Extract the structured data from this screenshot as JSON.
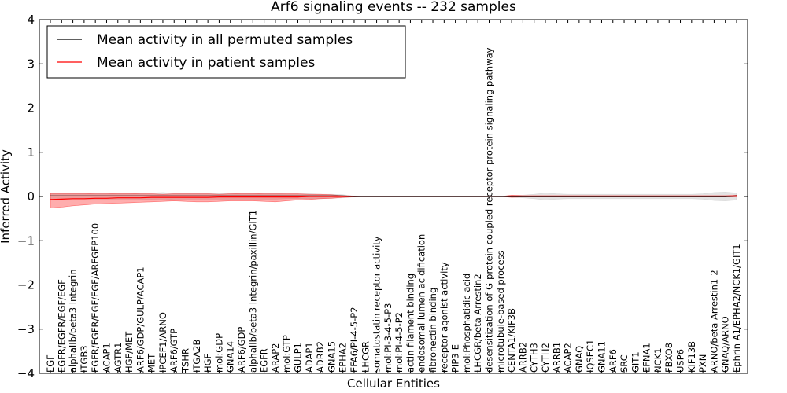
{
  "chart_data": {
    "type": "line",
    "title": "Arf6 signaling events -- 232 samples",
    "xlabel": "Cellular Entities",
    "ylabel": "Inferred Activity",
    "ylim": [
      -4,
      4
    ],
    "yticks": [
      "4",
      "3",
      "2",
      "1",
      "0",
      "−1",
      "−2",
      "−3",
      "−4"
    ],
    "ytick_values": [
      4,
      3,
      2,
      1,
      0,
      -1,
      -2,
      -3,
      -4
    ],
    "legend_location": "upper-left",
    "categories": [
      "EGF",
      "EGFR/EGFR/EGF/EGF",
      "alphaIIb/beta3 Integrin",
      "ITGB3",
      "EGFR/EGFR/EGF/EGF/ARFGEP100",
      "ACAP1",
      "AGTR1",
      "HGF/MET",
      "ARF6/GDP/GULP/ACAP1",
      "MET",
      "IPCEF1/ARNO",
      "ARF6/GTP",
      "TSHR",
      "ITGA2B",
      "HGF",
      "mol:GDP",
      "GNA14",
      "ARF6/GDP",
      "alphaIIb/beta3 Integrin/paxillin/GIT1",
      "EGFR",
      "ARAP2",
      "mol:GTP",
      "GULP1",
      "ADAP1",
      "ADRB2",
      "GNA15",
      "EPHA2",
      "EFA6/PI-4-5-P2",
      "LHCGR",
      "somatostatin receptor activity",
      "mol:PI-3-4-5-P3",
      "mol:PI-4-5-P2",
      "actin filament binding",
      "endosomal lumen acidification",
      "fibronectin binding",
      "receptor agonist activity",
      "PIP3-E",
      "mol:Phosphatidic acid",
      "LHCGR/beta Arrestin2",
      "desensitization of G-protein coupled receptor protein signaling pathway",
      "microtubule-based process",
      "CENTA1/KIF3B",
      "ARRB2",
      "CYTH3",
      "CYTH2",
      "ARRB1",
      "ACAP2",
      "GNAQ",
      "IQSEC1",
      "GNA11",
      "ARF6",
      "SRC",
      "GIT1",
      "EFNA1",
      "NCK1",
      "FBXO8",
      "USP6",
      "KIF13B",
      "PXN",
      "ARNO/beta Arrestin1-2",
      "GNAQ/ARNO",
      "Ephrin A1/EPHA2/NCK1/GIT1"
    ],
    "series": [
      {
        "name": "Mean activity in all permuted samples",
        "color": "#000000",
        "band_color": "#c0c0c0",
        "values": [
          0.01,
          0.01,
          0.01,
          0.01,
          0.01,
          0.01,
          0.01,
          0.01,
          0.01,
          0.01,
          0.01,
          0.01,
          0.01,
          0.01,
          0.01,
          0.01,
          0.01,
          0.01,
          0.01,
          0.01,
          0.01,
          0.01,
          0.01,
          0.01,
          0.01,
          0.01,
          0.01,
          0.0,
          0.0,
          0.0,
          0.0,
          0.0,
          0.0,
          0.0,
          0.0,
          0.0,
          0.0,
          0.0,
          0.0,
          0.0,
          0.0,
          0.0,
          0.0,
          0.0,
          0.0,
          0.0,
          0.0,
          0.0,
          0.0,
          0.0,
          0.0,
          0.0,
          0.0,
          0.0,
          0.0,
          0.0,
          0.0,
          0.0,
          0.0,
          0.0,
          0.0,
          0.01
        ],
        "band_upper": [
          0.07,
          0.07,
          0.07,
          0.07,
          0.07,
          0.07,
          0.07,
          0.07,
          0.07,
          0.08,
          0.09,
          0.07,
          0.07,
          0.07,
          0.07,
          0.07,
          0.07,
          0.07,
          0.07,
          0.07,
          0.07,
          0.06,
          0.06,
          0.06,
          0.05,
          0.05,
          0.04,
          0.01,
          0.0,
          0.0,
          0.0,
          0.0,
          0.0,
          0.0,
          0.0,
          0.0,
          0.0,
          0.0,
          0.0,
          0.0,
          0.0,
          0.02,
          0.03,
          0.05,
          0.08,
          0.06,
          0.05,
          0.05,
          0.05,
          0.05,
          0.05,
          0.05,
          0.05,
          0.05,
          0.05,
          0.05,
          0.05,
          0.05,
          0.06,
          0.09,
          0.1,
          0.08
        ],
        "band_lower": [
          -0.06,
          -0.06,
          -0.06,
          -0.06,
          -0.06,
          -0.06,
          -0.06,
          -0.06,
          -0.06,
          -0.07,
          -0.08,
          -0.06,
          -0.06,
          -0.06,
          -0.06,
          -0.06,
          -0.06,
          -0.06,
          -0.06,
          -0.06,
          -0.06,
          -0.05,
          -0.05,
          -0.05,
          -0.05,
          -0.04,
          -0.03,
          -0.01,
          0.0,
          0.0,
          0.0,
          0.0,
          0.0,
          0.0,
          0.0,
          0.0,
          0.0,
          0.0,
          0.0,
          0.0,
          0.0,
          -0.02,
          -0.03,
          -0.05,
          -0.08,
          -0.06,
          -0.05,
          -0.05,
          -0.05,
          -0.05,
          -0.05,
          -0.05,
          -0.05,
          -0.05,
          -0.05,
          -0.05,
          -0.05,
          -0.05,
          -0.06,
          -0.09,
          -0.1,
          -0.08
        ]
      },
      {
        "name": "Mean activity in patient samples",
        "color": "#ff0000",
        "band_color": "#ff0000",
        "values": [
          -0.07,
          -0.06,
          -0.05,
          -0.05,
          -0.04,
          -0.04,
          -0.03,
          -0.03,
          -0.03,
          -0.02,
          -0.02,
          -0.02,
          -0.02,
          -0.02,
          -0.02,
          -0.01,
          -0.01,
          -0.01,
          -0.01,
          -0.01,
          -0.01,
          -0.01,
          -0.01,
          0.0,
          0.0,
          0.0,
          0.0,
          0.0,
          0.0,
          0.0,
          0.0,
          0.0,
          0.0,
          0.0,
          0.0,
          0.0,
          0.0,
          0.0,
          0.0,
          0.0,
          0.0,
          0.0,
          0.0,
          0.0,
          0.0,
          0.0,
          0.0,
          0.0,
          0.0,
          0.0,
          0.0,
          0.0,
          0.0,
          0.0,
          0.0,
          0.0,
          0.0,
          0.0,
          0.0,
          0.0,
          0.0,
          0.01
        ],
        "band_upper": [
          0.07,
          0.07,
          0.07,
          0.07,
          0.06,
          0.06,
          0.07,
          0.07,
          0.06,
          0.06,
          0.05,
          0.06,
          0.06,
          0.06,
          0.06,
          0.05,
          0.06,
          0.07,
          0.07,
          0.06,
          0.06,
          0.06,
          0.06,
          0.05,
          0.05,
          0.04,
          0.02,
          0.01,
          0.0,
          0.0,
          0.0,
          0.0,
          0.0,
          0.0,
          0.0,
          0.0,
          0.0,
          0.0,
          0.0,
          0.0,
          0.0,
          0.03,
          0.02,
          0.02,
          0.02,
          0.02,
          0.02,
          0.02,
          0.02,
          0.02,
          0.02,
          0.02,
          0.02,
          0.02,
          0.02,
          0.02,
          0.02,
          0.02,
          0.02,
          0.02,
          0.02,
          0.03
        ],
        "band_lower": [
          -0.26,
          -0.24,
          -0.21,
          -0.19,
          -0.17,
          -0.16,
          -0.15,
          -0.14,
          -0.13,
          -0.12,
          -0.11,
          -0.1,
          -0.11,
          -0.12,
          -0.12,
          -0.11,
          -0.1,
          -0.1,
          -0.1,
          -0.11,
          -0.12,
          -0.1,
          -0.08,
          -0.07,
          -0.05,
          -0.04,
          -0.02,
          -0.01,
          0.0,
          0.0,
          0.0,
          0.0,
          0.0,
          0.0,
          0.0,
          0.0,
          0.0,
          0.0,
          0.0,
          0.0,
          0.0,
          -0.02,
          -0.01,
          -0.01,
          -0.01,
          -0.01,
          -0.01,
          -0.01,
          -0.01,
          -0.01,
          -0.01,
          -0.01,
          -0.01,
          -0.01,
          -0.01,
          -0.01,
          -0.01,
          -0.01,
          -0.01,
          -0.01,
          -0.01,
          -0.01
        ]
      }
    ]
  }
}
